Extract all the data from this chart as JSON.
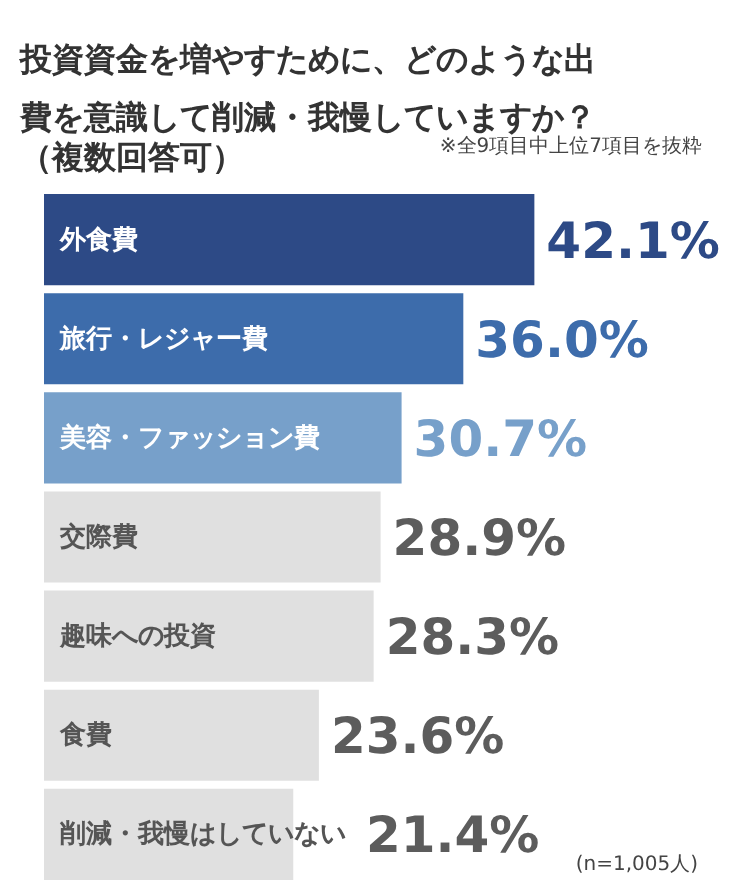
{
  "chart_data": {
    "type": "bar",
    "orientation": "horizontal",
    "title": "投資資金を増やすために、どのような出費を意識して削減・我慢していますか？",
    "subtitle": "（複数回答可）",
    "categories": [
      "外食費",
      "旅行・レジャー費",
      "美容・ファッション費",
      "交際費",
      "趣味への投資",
      "食費",
      "削減・我慢はしていない"
    ],
    "values": [
      42.1,
      36.0,
      30.7,
      28.9,
      28.3,
      23.6,
      21.4
    ],
    "value_labels": [
      "42.1%",
      "36.0%",
      "30.7%",
      "28.9%",
      "28.3%",
      "23.6%",
      "21.4%"
    ],
    "colors": [
      "#2d4a86",
      "#3d6cab",
      "#77a0ca",
      "#e0e0e0",
      "#e0e0e0",
      "#e0e0e0",
      "#e0e0e0"
    ],
    "annotations": [
      "※全9項目中上位7項目を抜粋",
      "(n=1,005人)"
    ]
  }
}
